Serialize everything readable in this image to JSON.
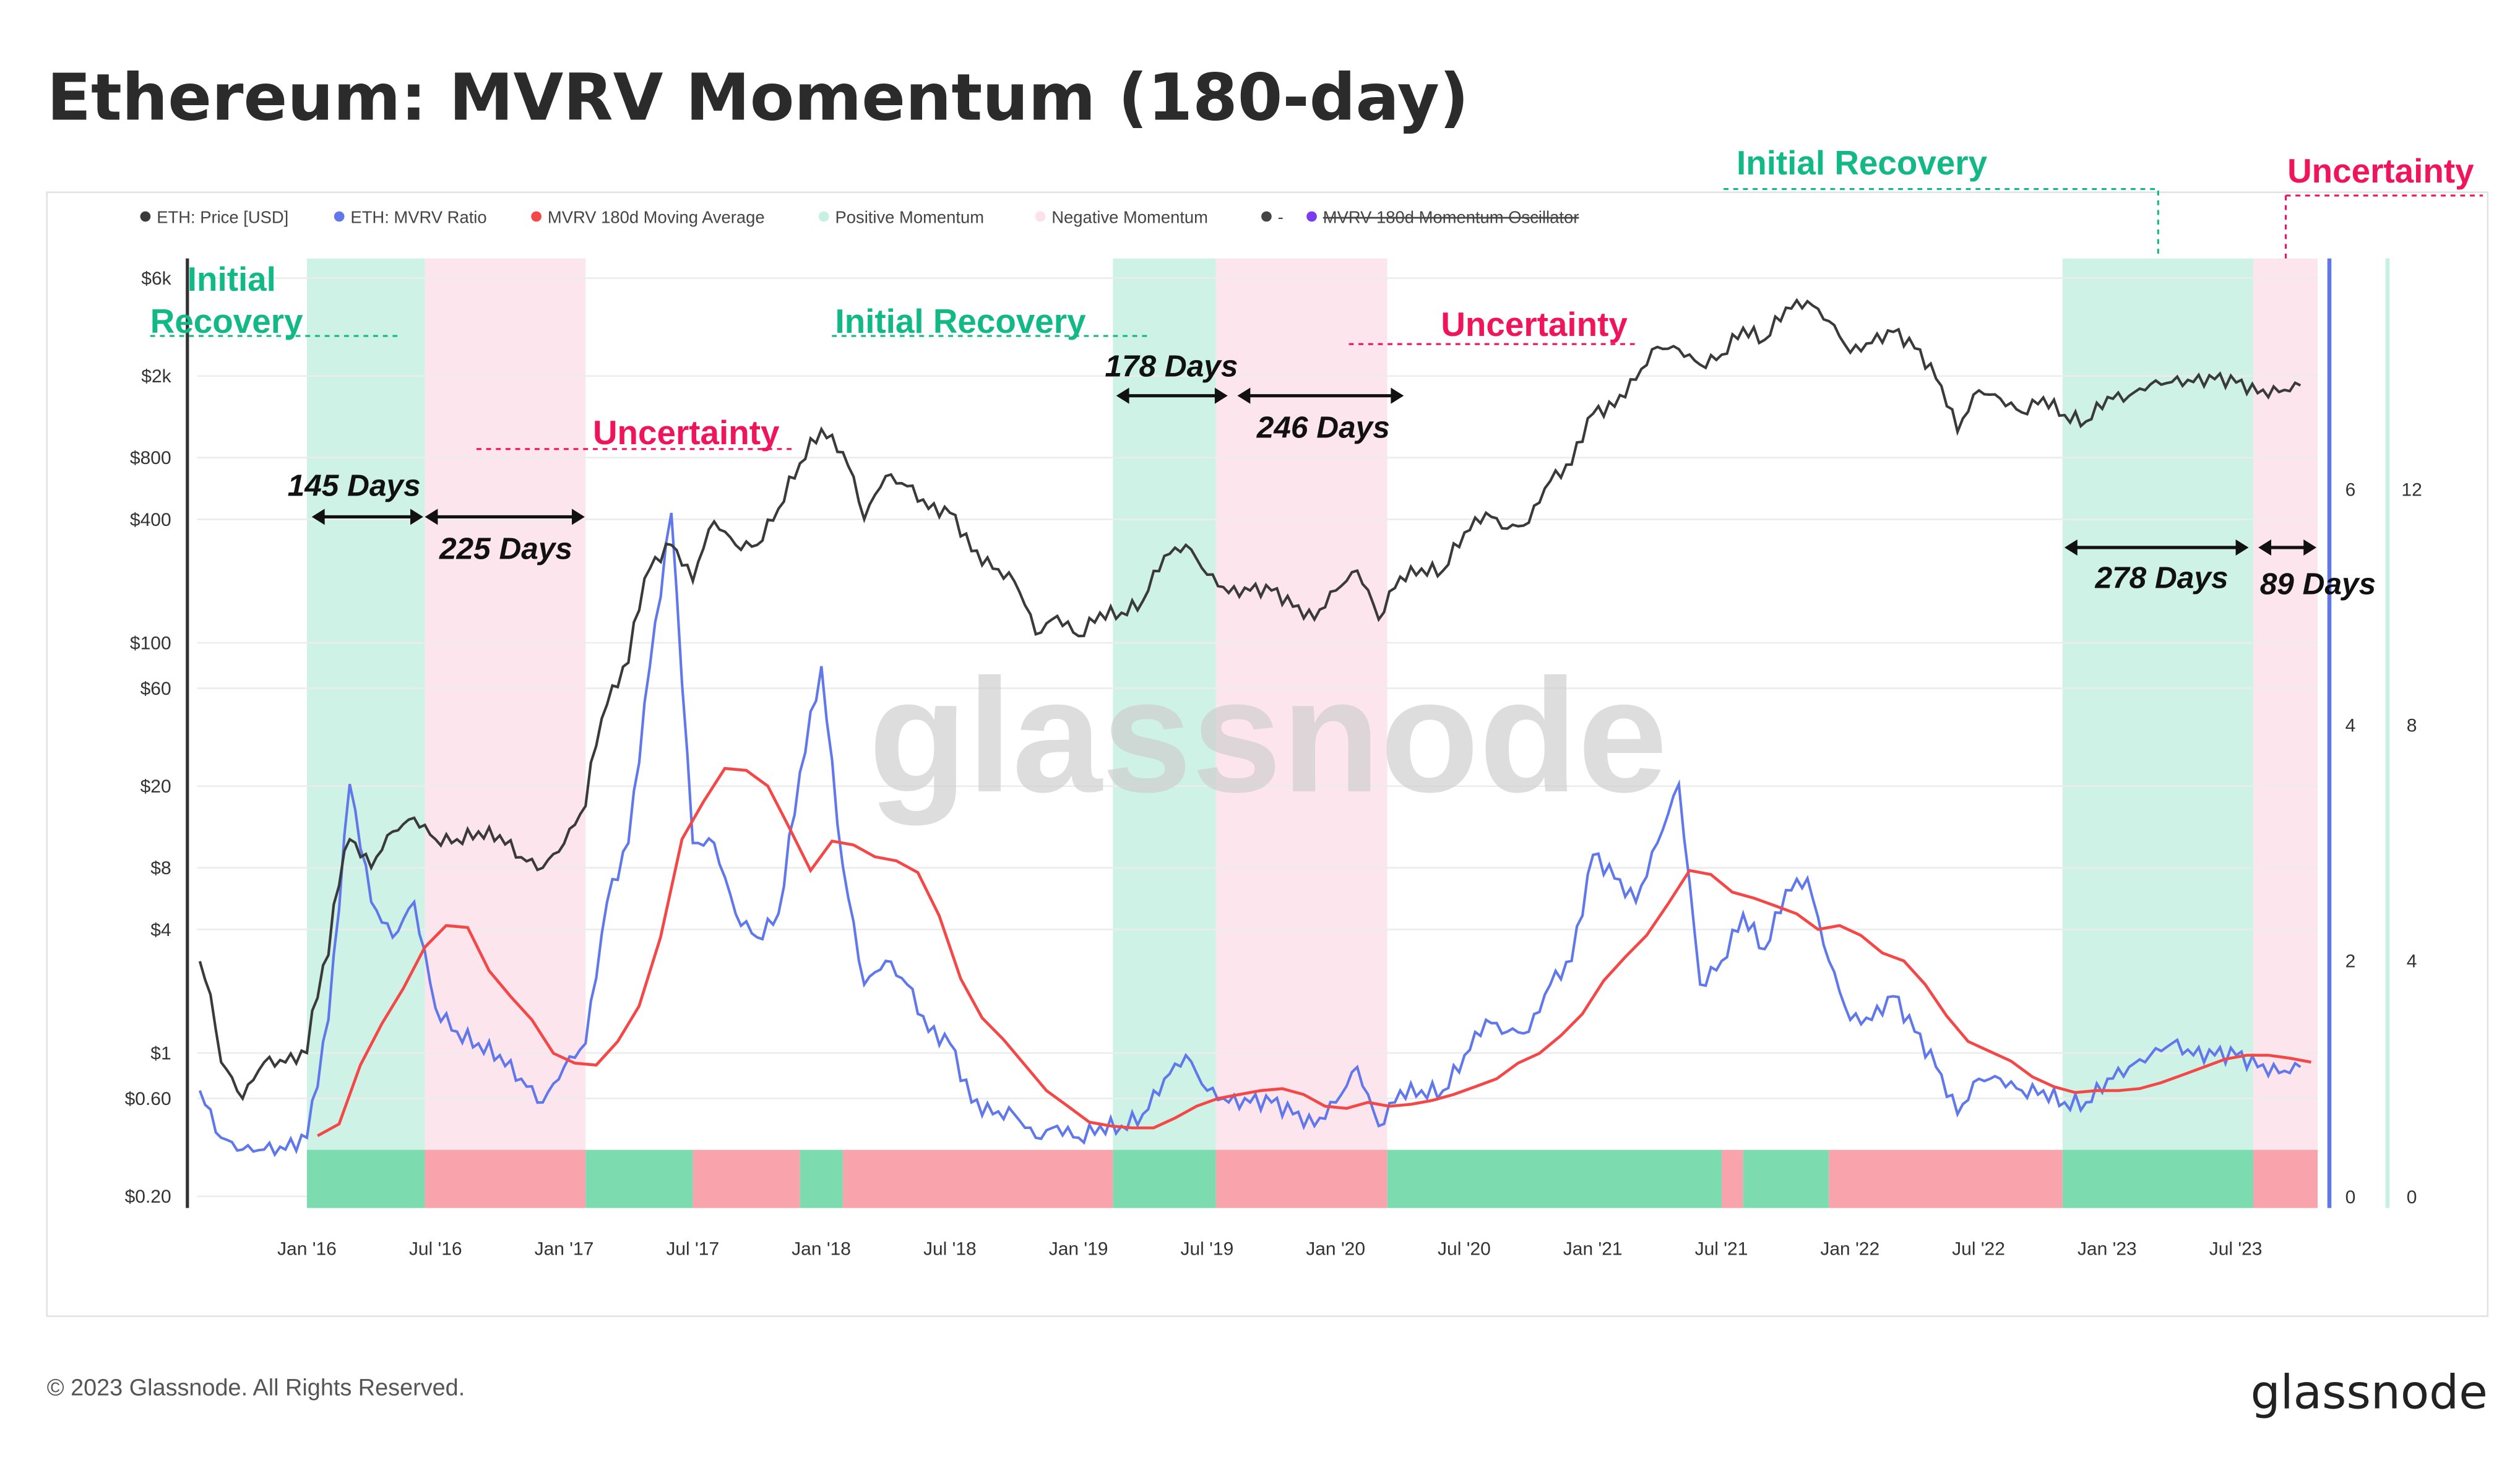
{
  "title": "Ethereum: MVRV Momentum (180-day)",
  "footer": "© 2023 Glassnode. All Rights Reserved.",
  "logo": "glassnode",
  "watermark": "glassnode",
  "colors": {
    "price": "#3a3a3a",
    "mvrv": "#6078ea",
    "ma": "#f44848",
    "positive": "#c6f0e0",
    "negative": "#fde0ea",
    "positive_strip": "#7ddbb0",
    "negative_strip": "#f9a3ad",
    "oscillator": "#7b3cf0"
  },
  "legend": [
    {
      "label": "ETH: Price [USD]",
      "color": "#3a3a3a"
    },
    {
      "label": "ETH: MVRV Ratio",
      "color": "#6078ea"
    },
    {
      "label": "MVRV 180d Moving Average",
      "color": "#f44848"
    },
    {
      "label": "Positive Momentum",
      "color": "#c6f0e0"
    },
    {
      "label": "Negative Momentum",
      "color": "#fde0ea"
    },
    {
      "label": "-",
      "color": "#444"
    },
    {
      "label": "MVRV 180d Momentum Oscillator",
      "color": "#7b3cf0",
      "disabled": true
    }
  ],
  "annotations": {
    "top_recovery": "Initial Recovery",
    "top_uncertainty": "Uncertainty",
    "initial": "Initial",
    "recovery": "Recovery",
    "recovery2": "Initial Recovery",
    "uncertainty1": "Uncertainty",
    "uncertainty2": "Uncertainty",
    "d145": "145 Days",
    "d225": "225 Days",
    "d178": "178 Days",
    "d246": "246 Days",
    "d278": "278 Days",
    "d89": "89 Days"
  },
  "chart_data": {
    "type": "line",
    "title": "Ethereum: MVRV Momentum (180-day)",
    "x_ticks": [
      "Jan '16",
      "Jul '16",
      "Jan '17",
      "Jul '17",
      "Jan '18",
      "Jul '18",
      "Jan '19",
      "Jul '19",
      "Jan '20",
      "Jul '20",
      "Jan '21",
      "Jul '21",
      "Jan '22",
      "Jul '22",
      "Jan '23",
      "Jul '23"
    ],
    "y_price_ticks": [
      {
        "v": 6000,
        "l": "$6k"
      },
      {
        "v": 2000,
        "l": "$2k"
      },
      {
        "v": 800,
        "l": "$800"
      },
      {
        "v": 400,
        "l": "$400"
      },
      {
        "v": 100,
        "l": "$100"
      },
      {
        "v": 60,
        "l": "$60"
      },
      {
        "v": 20,
        "l": "$20"
      },
      {
        "v": 8,
        "l": "$8"
      },
      {
        "v": 4,
        "l": "$4"
      },
      {
        "v": 1,
        "l": "$1"
      },
      {
        "v": 0.6,
        "l": "$0.60"
      },
      {
        "v": 0.2,
        "l": "$0.20"
      }
    ],
    "y_price_scale": "log",
    "y_mvrv_ticks": [
      "0",
      "2",
      "4",
      "6"
    ],
    "y_osc_ticks": [
      "0",
      "4",
      "8",
      "12"
    ],
    "dates": [
      "2015-08",
      "2015-09",
      "2015-10",
      "2015-11",
      "2015-12",
      "2016-01",
      "2016-02",
      "2016-03",
      "2016-04",
      "2016-05",
      "2016-06",
      "2016-07",
      "2016-08",
      "2016-09",
      "2016-10",
      "2016-11",
      "2016-12",
      "2017-01",
      "2017-02",
      "2017-03",
      "2017-04",
      "2017-05",
      "2017-06",
      "2017-07",
      "2017-08",
      "2017-09",
      "2017-10",
      "2017-11",
      "2017-12",
      "2018-01",
      "2018-02",
      "2018-03",
      "2018-04",
      "2018-05",
      "2018-06",
      "2018-07",
      "2018-08",
      "2018-09",
      "2018-10",
      "2018-11",
      "2018-12",
      "2019-01",
      "2019-02",
      "2019-03",
      "2019-04",
      "2019-05",
      "2019-06",
      "2019-07",
      "2019-08",
      "2019-09",
      "2019-10",
      "2019-11",
      "2019-12",
      "2020-01",
      "2020-02",
      "2020-03",
      "2020-04",
      "2020-05",
      "2020-06",
      "2020-07",
      "2020-08",
      "2020-09",
      "2020-10",
      "2020-11",
      "2020-12",
      "2021-01",
      "2021-02",
      "2021-03",
      "2021-04",
      "2021-05",
      "2021-06",
      "2021-07",
      "2021-08",
      "2021-09",
      "2021-10",
      "2021-11",
      "2021-12",
      "2022-01",
      "2022-02",
      "2022-03",
      "2022-04",
      "2022-05",
      "2022-06",
      "2022-07",
      "2022-08",
      "2022-09",
      "2022-10",
      "2022-11",
      "2022-12",
      "2023-01",
      "2023-02",
      "2023-03",
      "2023-04",
      "2023-05",
      "2023-06",
      "2023-07",
      "2023-08",
      "2023-09",
      "2023-10"
    ],
    "series": [
      {
        "name": "ETH: Price [USD]",
        "values": [
          2.8,
          0.9,
          0.6,
          0.9,
          0.9,
          1.0,
          3,
          11,
          8,
          12,
          14,
          11,
          11,
          12,
          11.5,
          9,
          8,
          10.5,
          16,
          50,
          80,
          230,
          300,
          200,
          390,
          300,
          300,
          450,
          750,
          1100,
          850,
          400,
          650,
          580,
          450,
          430,
          280,
          230,
          200,
          110,
          135,
          108,
          140,
          140,
          160,
          265,
          300,
          215,
          175,
          180,
          180,
          150,
          130,
          180,
          225,
          130,
          210,
          230,
          225,
          345,
          430,
          360,
          385,
          615,
          740,
          1310,
          1420,
          1920,
          2770,
          2700,
          2270,
          2540,
          3430,
          3000,
          4300,
          4630,
          3700,
          2600,
          2900,
          3280,
          2730,
          1940,
          1070,
          1700,
          1550,
          1330,
          1570,
          1290,
          1200,
          1580,
          1600,
          1820,
          1870,
          1870,
          1930,
          1860,
          1650,
          1670,
          1800
        ]
      },
      {
        "name": "ETH: MVRV Ratio",
        "values": [
          0.9,
          0.5,
          0.4,
          0.4,
          0.4,
          0.5,
          1.5,
          3.5,
          2.5,
          2.2,
          2.5,
          1.6,
          1.4,
          1.3,
          1.2,
          1.0,
          0.8,
          1.1,
          1.3,
          2.5,
          3.0,
          4.5,
          5.8,
          3.0,
          3.0,
          2.4,
          2.2,
          2.4,
          3.6,
          4.5,
          2.8,
          1.8,
          2.0,
          1.8,
          1.4,
          1.3,
          0.8,
          0.7,
          0.7,
          0.5,
          0.6,
          0.5,
          0.6,
          0.6,
          0.7,
          1.0,
          1.2,
          0.9,
          0.8,
          0.8,
          0.8,
          0.7,
          0.6,
          0.8,
          1.1,
          0.6,
          0.9,
          0.9,
          0.9,
          1.2,
          1.5,
          1.4,
          1.4,
          1.8,
          2.0,
          2.9,
          2.7,
          2.5,
          3.0,
          3.5,
          1.8,
          2.0,
          2.4,
          2.1,
          2.6,
          2.7,
          2.0,
          1.5,
          1.5,
          1.7,
          1.4,
          1.1,
          0.7,
          1.0,
          1.0,
          0.9,
          0.9,
          0.8,
          0.8,
          1.0,
          1.1,
          1.2,
          1.3,
          1.2,
          1.2,
          1.2,
          1.1,
          1.05,
          1.1
        ]
      },
      {
        "name": "MVRV 180d Moving Average",
        "window_days": 180
      }
    ],
    "momentum_regions": [
      {
        "state": "positive",
        "start": "2016-01",
        "end": "2016-06.5",
        "days": 145
      },
      {
        "state": "negative",
        "start": "2016-06.5",
        "end": "2017-02",
        "days": 225
      },
      {
        "state": "positive",
        "start": "2019-02.6",
        "end": "2019-07.4",
        "days": 178
      },
      {
        "state": "negative",
        "start": "2019-07.4",
        "end": "2020-03.4",
        "days": 246
      },
      {
        "state": "positive",
        "start": "2022-10.9",
        "end": "2023-07.8",
        "days": 278
      },
      {
        "state": "negative",
        "start": "2023-07.8",
        "end": "2023-10.8",
        "days": 89
      }
    ],
    "momentum_strip": [
      {
        "state": "positive",
        "start": "2016-01",
        "end": "2016-06.5"
      },
      {
        "state": "negative",
        "start": "2016-06.5",
        "end": "2017-02"
      },
      {
        "state": "positive",
        "start": "2017-02",
        "end": "2017-07"
      },
      {
        "state": "negative",
        "start": "2017-07",
        "end": "2017-12"
      },
      {
        "state": "positive",
        "start": "2017-12",
        "end": "2018-02"
      },
      {
        "state": "negative",
        "start": "2018-02",
        "end": "2019-02.6"
      },
      {
        "state": "positive",
        "start": "2019-02.6",
        "end": "2019-07.4"
      },
      {
        "state": "negative",
        "start": "2019-07.4",
        "end": "2020-03.4"
      },
      {
        "state": "positive",
        "start": "2020-03.4",
        "end": "2021-07"
      },
      {
        "state": "negative",
        "start": "2021-07",
        "end": "2021-08"
      },
      {
        "state": "positive",
        "start": "2021-08",
        "end": "2021-12"
      },
      {
        "state": "negative",
        "start": "2021-12",
        "end": "2022-10.9"
      },
      {
        "state": "positive",
        "start": "2022-10.9",
        "end": "2023-07.8"
      },
      {
        "state": "negative",
        "start": "2023-07.8",
        "end": "2023-10.8"
      }
    ],
    "grid": true,
    "legend_position": "top-left"
  }
}
